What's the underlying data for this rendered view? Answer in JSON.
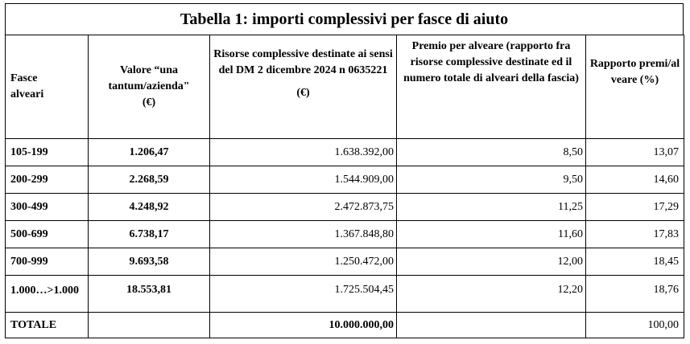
{
  "title": "Tabella 1: importi complessivi per fasce di aiuto",
  "headers": {
    "col0": "Fasce alveari",
    "col1": "Valore “una tantum/azienda\"",
    "col1_unit": "(€)",
    "col2": "Risorse complessive destinate ai sensi del DM 2 dicembre 2024 n 0635221",
    "col2_unit": "(€)",
    "col3": "Premio per alveare (rapporto fra risorse complessive destinate ed il numero totale di alveari della fascia)",
    "col4": "Rapporto premi/alveare (%)"
  },
  "rows": [
    {
      "fascia": "105-199",
      "valore": "1.206,47",
      "risorse": "1.638.392,00",
      "premio": "8,50",
      "rapporto": "13,07"
    },
    {
      "fascia": "200-299",
      "valore": "2.268,59",
      "risorse": "1.544.909,00",
      "premio": "9,50",
      "rapporto": "14,60"
    },
    {
      "fascia": "300-499",
      "valore": "4.248,92",
      "risorse": "2.472.873,75",
      "premio": "11,25",
      "rapporto": "17,29"
    },
    {
      "fascia": "500-699",
      "valore": "6.738,17",
      "risorse": "1.367.848,80",
      "premio": "11,60",
      "rapporto": "17,83"
    },
    {
      "fascia": "700-999",
      "valore": "9.693,58",
      "risorse": "1.250.472,00",
      "premio": "12,00",
      "rapporto": "18,45"
    },
    {
      "fascia": "1.000…>1.000",
      "valore": "18.553,81",
      "risorse": "1.725.504,45",
      "premio": "12,20",
      "rapporto": "18,76"
    }
  ],
  "total": {
    "label": "TOTALE",
    "risorse": "10.000.000,00",
    "rapporto": "100,00"
  }
}
